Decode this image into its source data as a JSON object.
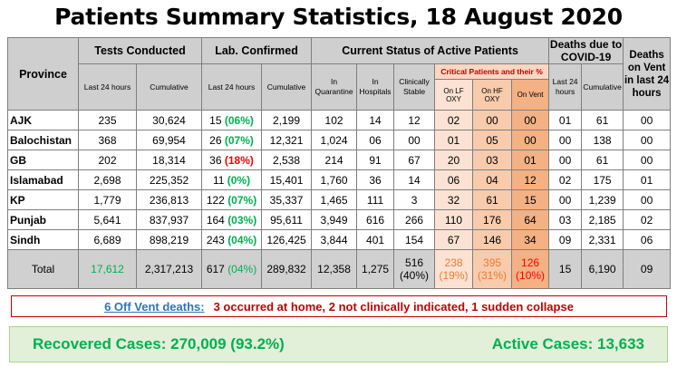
{
  "title": "Patients Summary Statistics, 18 August 2020",
  "headers": {
    "province": "Province",
    "tests": "Tests Conducted",
    "lab": "Lab. Confirmed",
    "active": "Current Status of Active Patients",
    "deaths": "Deaths due to COVID-19",
    "deaths_vent": "Deaths on Vent in last 24 hours",
    "last24": "Last 24 hours",
    "cumulative": "Cumulative",
    "in_quarantine": "In Quarantine",
    "in_hospitals": "In Hospitals",
    "clinically_stable": "Clinically Stable",
    "critical": "Critical Patients and their %",
    "on_lf_oxy": "On LF OXY",
    "on_hf_oxy": "On HF OXY",
    "on_vent": "On Vent",
    "deaths_last24": "Last 24 hours",
    "deaths_cumulative": "Cumulative"
  },
  "rows": [
    {
      "province": "AJK",
      "tests_24": "235",
      "tests_cum": "30,624",
      "lab_24": "15",
      "lab_pct": "(06%)",
      "lab_cum": "2,199",
      "quarantine": "102",
      "hospitals": "14",
      "stable": "12",
      "lf": "02",
      "hf": "00",
      "vent": "00",
      "deaths_24": "01",
      "deaths_cum": "61",
      "deaths_vent": "00"
    },
    {
      "province": "Balochistan",
      "tests_24": "368",
      "tests_cum": "69,954",
      "lab_24": "26",
      "lab_pct": "(07%)",
      "lab_cum": "12,321",
      "quarantine": "1,024",
      "hospitals": "06",
      "stable": "00",
      "lf": "01",
      "hf": "05",
      "vent": "00",
      "deaths_24": "00",
      "deaths_cum": "138",
      "deaths_vent": "00"
    },
    {
      "province": "GB",
      "tests_24": "202",
      "tests_cum": "18,314",
      "lab_24": "36",
      "lab_pct": "(18%)",
      "lab_cum": "2,538",
      "quarantine": "214",
      "hospitals": "91",
      "stable": "67",
      "lf": "20",
      "hf": "03",
      "vent": "01",
      "deaths_24": "00",
      "deaths_cum": "61",
      "deaths_vent": "00"
    },
    {
      "province": "Islamabad",
      "tests_24": "2,698",
      "tests_cum": "225,352",
      "lab_24": "11",
      "lab_pct": "(0%)",
      "lab_cum": "15,401",
      "quarantine": "1,760",
      "hospitals": "36",
      "stable": "14",
      "lf": "06",
      "hf": "04",
      "vent": "12",
      "deaths_24": "02",
      "deaths_cum": "175",
      "deaths_vent": "01"
    },
    {
      "province": "KP",
      "tests_24": "1,779",
      "tests_cum": "236,813",
      "lab_24": "122",
      "lab_pct": "(07%)",
      "lab_cum": "35,337",
      "quarantine": "1,465",
      "hospitals": "111",
      "stable": "3",
      "lf": "32",
      "hf": "61",
      "vent": "15",
      "deaths_24": "00",
      "deaths_cum": "1,239",
      "deaths_vent": "00"
    },
    {
      "province": "Punjab",
      "tests_24": "5,641",
      "tests_cum": "837,937",
      "lab_24": "164",
      "lab_pct": "(03%)",
      "lab_cum": "95,611",
      "quarantine": "3,949",
      "hospitals": "616",
      "stable": "266",
      "lf": "110",
      "hf": "176",
      "vent": "64",
      "deaths_24": "03",
      "deaths_cum": "2,185",
      "deaths_vent": "02"
    },
    {
      "province": "Sindh",
      "tests_24": "6,689",
      "tests_cum": "898,219",
      "lab_24": "243",
      "lab_pct": "(04%)",
      "lab_cum": "126,425",
      "quarantine": "3,844",
      "hospitals": "401",
      "stable": "154",
      "lf": "67",
      "hf": "146",
      "vent": "34",
      "deaths_24": "09",
      "deaths_cum": "2,331",
      "deaths_vent": "06"
    }
  ],
  "total": {
    "label": "Total",
    "tests_24": "17,612",
    "tests_cum": "2,317,213",
    "lab_24": "617",
    "lab_pct": "(04%)",
    "lab_cum": "289,832",
    "quarantine": "12,358",
    "hospitals": "1,275",
    "stable": "516",
    "stable_pct": "(40%)",
    "lf": "238",
    "lf_pct": "(19%)",
    "hf": "395",
    "hf_pct": "(31%)",
    "vent": "126",
    "vent_pct": "(10%)",
    "deaths_24": "15",
    "deaths_cum": "6,190",
    "deaths_vent": "09"
  },
  "off_vent": {
    "label": "6 Off Vent deaths:",
    "text": "3 occurred at home, 2 not clinically indicated, 1 sudden collapse"
  },
  "summary": {
    "recovered": "Recovered Cases: 270,009 (93.2%)",
    "active": "Active Cases: 13,633"
  },
  "colors": {
    "green": "#00b050",
    "red": "#ff0000",
    "orange": "#ed7d31",
    "header_grey": "#cfcfcf",
    "link_blue": "#2e75b6"
  }
}
